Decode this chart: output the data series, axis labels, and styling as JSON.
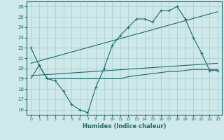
{
  "xlabel": "Humidex (Indice chaleur)",
  "ylabel": "",
  "xlim": [
    -0.5,
    23.5
  ],
  "ylim": [
    15.5,
    26.5
  ],
  "yticks": [
    16,
    17,
    18,
    19,
    20,
    21,
    22,
    23,
    24,
    25,
    26
  ],
  "xticks": [
    0,
    1,
    2,
    3,
    4,
    5,
    6,
    7,
    8,
    9,
    10,
    11,
    12,
    13,
    14,
    15,
    16,
    17,
    18,
    19,
    20,
    21,
    22,
    23
  ],
  "bg_color": "#cfe8ea",
  "grid_color": "#a8d0d4",
  "line_color": "#1a6b6b",
  "line1_x": [
    0,
    1,
    2,
    3,
    4,
    5,
    6,
    7,
    8,
    9,
    10,
    11,
    12,
    13,
    14,
    15,
    16,
    17,
    18,
    19,
    20,
    21,
    22,
    23
  ],
  "line1_y": [
    22.0,
    20.3,
    19.0,
    18.8,
    17.8,
    16.5,
    16.0,
    15.7,
    18.2,
    20.0,
    22.2,
    23.2,
    24.0,
    24.8,
    24.8,
    24.5,
    25.6,
    25.6,
    26.0,
    24.8,
    23.0,
    21.5,
    19.8,
    19.8
  ],
  "line2_x": [
    0,
    23
  ],
  "line2_y": [
    19.3,
    20.5
  ],
  "line3_x": [
    0,
    23
  ],
  "line3_y": [
    20.5,
    25.5
  ],
  "line4_x": [
    0,
    1,
    2,
    3,
    4,
    5,
    6,
    7,
    8,
    9,
    10,
    11,
    12,
    13,
    14,
    15,
    16,
    17,
    18,
    19,
    20,
    21,
    22,
    23
  ],
  "line4_y": [
    19.0,
    20.3,
    19.0,
    19.0,
    19.0,
    19.0,
    19.0,
    19.0,
    19.0,
    19.0,
    19.0,
    19.0,
    19.2,
    19.3,
    19.4,
    19.5,
    19.6,
    19.7,
    19.7,
    19.8,
    19.9,
    19.9,
    19.9,
    19.9
  ]
}
